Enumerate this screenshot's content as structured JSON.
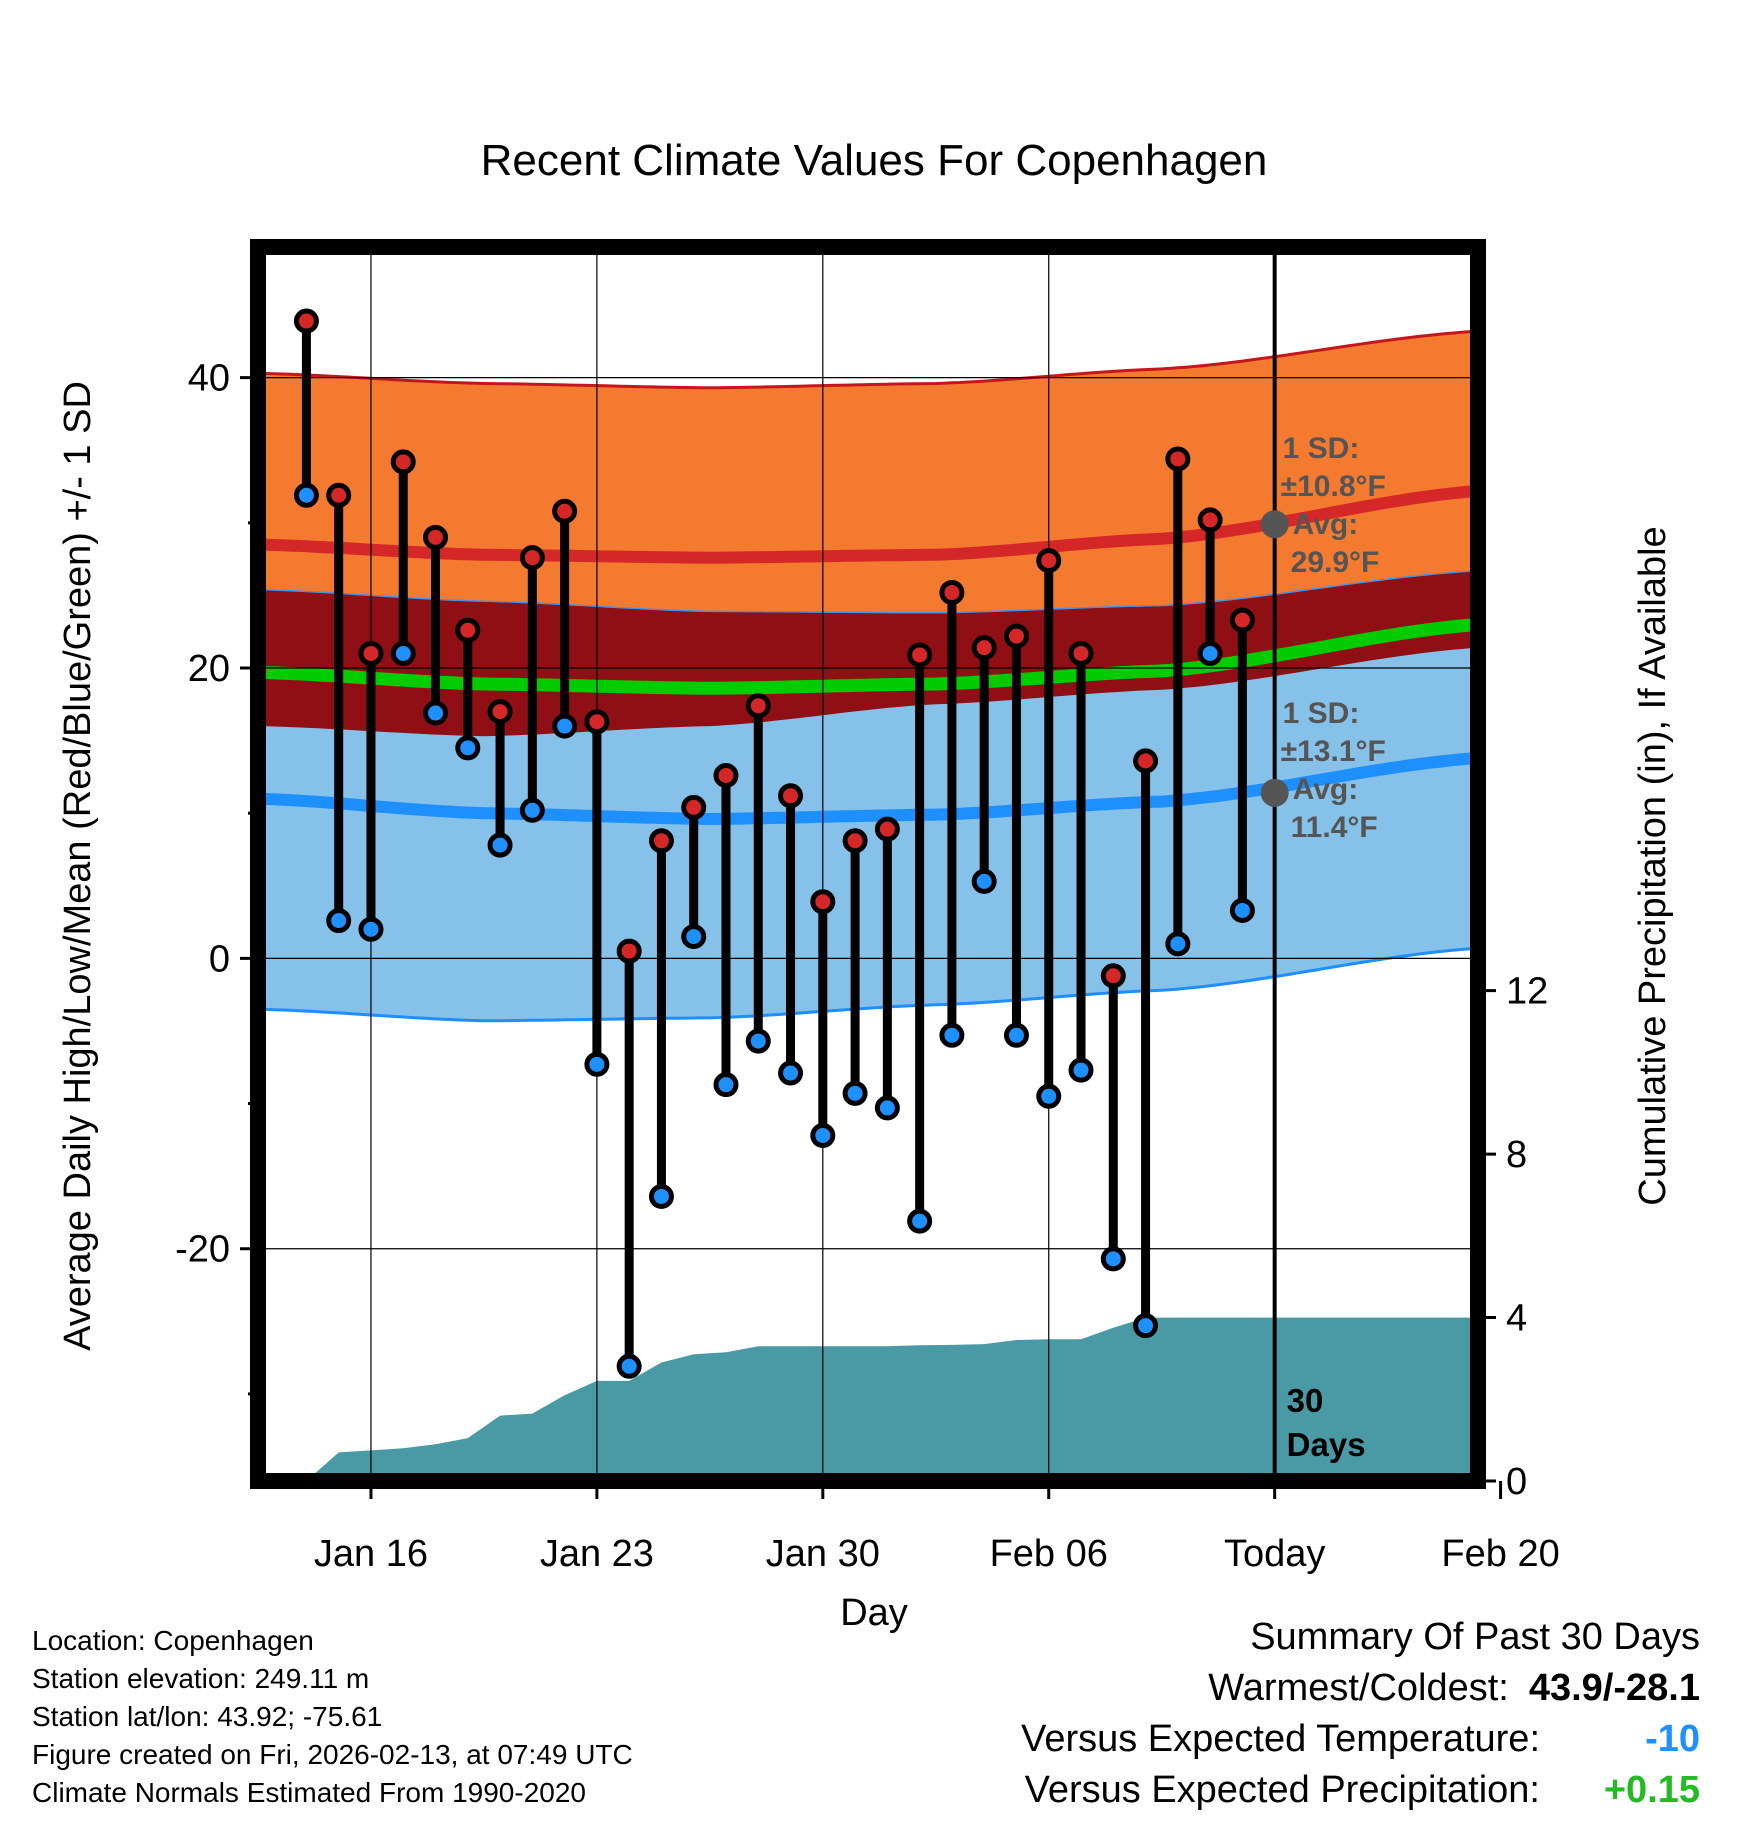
{
  "chart_data": {
    "type": "line",
    "title": "Recent Climate Values For Copenhagen",
    "xlabel": "Day",
    "ylabel": "Average Daily High/Low/Mean (Red/Blue/Green) +/- 1 SD",
    "y2label": "Cumulative Precipitation (in), If Available",
    "ylim": [
      -36,
      49
    ],
    "y2lim": [
      0,
      30.2
    ],
    "xlim": [
      -10.5,
      27.3
    ],
    "x_tick_labels": [
      {
        "x": -7,
        "label": "Jan 16"
      },
      {
        "x": 0,
        "label": "Jan 23"
      },
      {
        "x": 7,
        "label": "Jan 30"
      },
      {
        "x": 14,
        "label": "Feb 06"
      },
      {
        "x": 21,
        "label": "Today"
      },
      {
        "x": 28,
        "label": "Feb 20"
      }
    ],
    "y_ticks_labeled": [
      -20,
      0,
      20,
      40
    ],
    "y_ticks_minor": [
      -30,
      -10,
      10,
      30
    ],
    "y2_ticks": [
      0,
      4,
      8,
      12
    ],
    "today_x": 21,
    "today_label": [
      "30",
      "Days"
    ],
    "days": [
      -9,
      -8,
      -7,
      -6,
      -5,
      -4,
      -3,
      -2,
      -1,
      0,
      1,
      2,
      3,
      4,
      5,
      6,
      7,
      8,
      9,
      10,
      11,
      12,
      13,
      14,
      15,
      16,
      17,
      18,
      19,
      20
    ],
    "highs": [
      43.9,
      31.9,
      21.0,
      34.2,
      29.0,
      22.6,
      17.0,
      27.6,
      30.8,
      16.3,
      0.5,
      8.1,
      10.4,
      12.6,
      17.4,
      11.2,
      3.9,
      8.1,
      8.9,
      20.9,
      25.2,
      21.4,
      22.2,
      27.4,
      21.0,
      -1.2,
      13.6,
      34.4,
      30.2,
      23.3
    ],
    "lows": [
      31.9,
      2.6,
      2.0,
      21.0,
      16.9,
      14.5,
      7.8,
      10.2,
      16.0,
      -7.3,
      -28.1,
      -16.4,
      1.5,
      -8.7,
      -5.7,
      -7.9,
      -12.2,
      -9.3,
      -10.3,
      -18.1,
      -5.3,
      5.3,
      -5.3,
      -9.5,
      -7.7,
      -20.7,
      -25.3,
      1.0,
      21.0,
      3.3
    ],
    "precip_days": [
      -10,
      -9,
      -8,
      -7,
      -6,
      -5,
      -4,
      -3,
      -2,
      -1,
      0,
      1,
      2,
      3,
      4,
      5,
      6,
      7,
      8,
      9,
      10,
      11,
      12,
      13,
      14,
      15,
      16,
      17,
      18,
      19,
      20,
      21,
      27.3
    ],
    "precip_cumulative": [
      0,
      0,
      0.7,
      0.75,
      0.8,
      0.9,
      1.05,
      1.6,
      1.65,
      2.1,
      2.45,
      2.45,
      2.9,
      3.1,
      3.15,
      3.3,
      3.3,
      3.3,
      3.3,
      3.3,
      3.32,
      3.33,
      3.35,
      3.45,
      3.47,
      3.47,
      3.75,
      4.0,
      4.0,
      4.0,
      4.0,
      4.0,
      4.0
    ],
    "normals_x": [
      -10.5,
      -3.5,
      3.5,
      10.5,
      17.5,
      27.3
    ],
    "normal_high_avg": [
      28.5,
      27.8,
      27.6,
      27.8,
      28.9,
      32.2
    ],
    "normal_low_avg": [
      11.0,
      10.0,
      9.6,
      9.9,
      10.8,
      13.8
    ],
    "normal_mean_avg": [
      19.7,
      18.9,
      18.6,
      18.9,
      19.8,
      23.0
    ],
    "normal_high_upper": [
      40.3,
      39.6,
      39.3,
      39.6,
      40.6,
      43.2
    ],
    "normal_high_lower": [
      25.4,
      24.6,
      23.9,
      23.8,
      24.3,
      26.7
    ],
    "normal_low_upper": [
      16.0,
      15.3,
      16.0,
      17.5,
      18.5,
      21.4
    ],
    "normal_low_lower": [
      -3.5,
      -4.3,
      -4.1,
      -3.2,
      -2.2,
      0.7
    ],
    "high_sd_label": [
      "1 SD:",
      "±10.8°F",
      "Avg:",
      "29.9°F"
    ],
    "low_sd_label": [
      "1 SD:",
      "±13.1°F",
      "Avg:",
      "11.4°F"
    ],
    "high_marker_value": 29.9,
    "low_marker_value": 11.4
  },
  "footer_left": [
    "Location: Copenhagen",
    "Station elevation: 249.11 m",
    "Station lat/lon: 43.92; -75.61",
    "Figure created on Fri, 2026-02-13, at 07:49 UTC",
    "Climate Normals Estimated From 1990-2020"
  ],
  "summary": {
    "title": "Summary Of Past 30 Days",
    "warmest_coldest_label": "Warmest/Coldest:",
    "warmest_coldest_value": "43.9/-28.1",
    "temp_label": "Versus Expected Temperature:",
    "temp_value": "-10",
    "precip_label": "Versus Expected Precipitation:",
    "precip_value": "+0.15"
  },
  "colors": {
    "high_band": "#f47a30",
    "high_avg": "#d62728",
    "mean_band": "#8f0f14",
    "mean_avg": "#00cc00",
    "low_band": "#85c1e8",
    "low_avg": "#1e8fff",
    "precip": "#4a9aa5",
    "high_dot": "#d62728",
    "low_dot": "#1e90ff",
    "temp_value": "#1e90ff",
    "precip_value": "#22bb22"
  }
}
